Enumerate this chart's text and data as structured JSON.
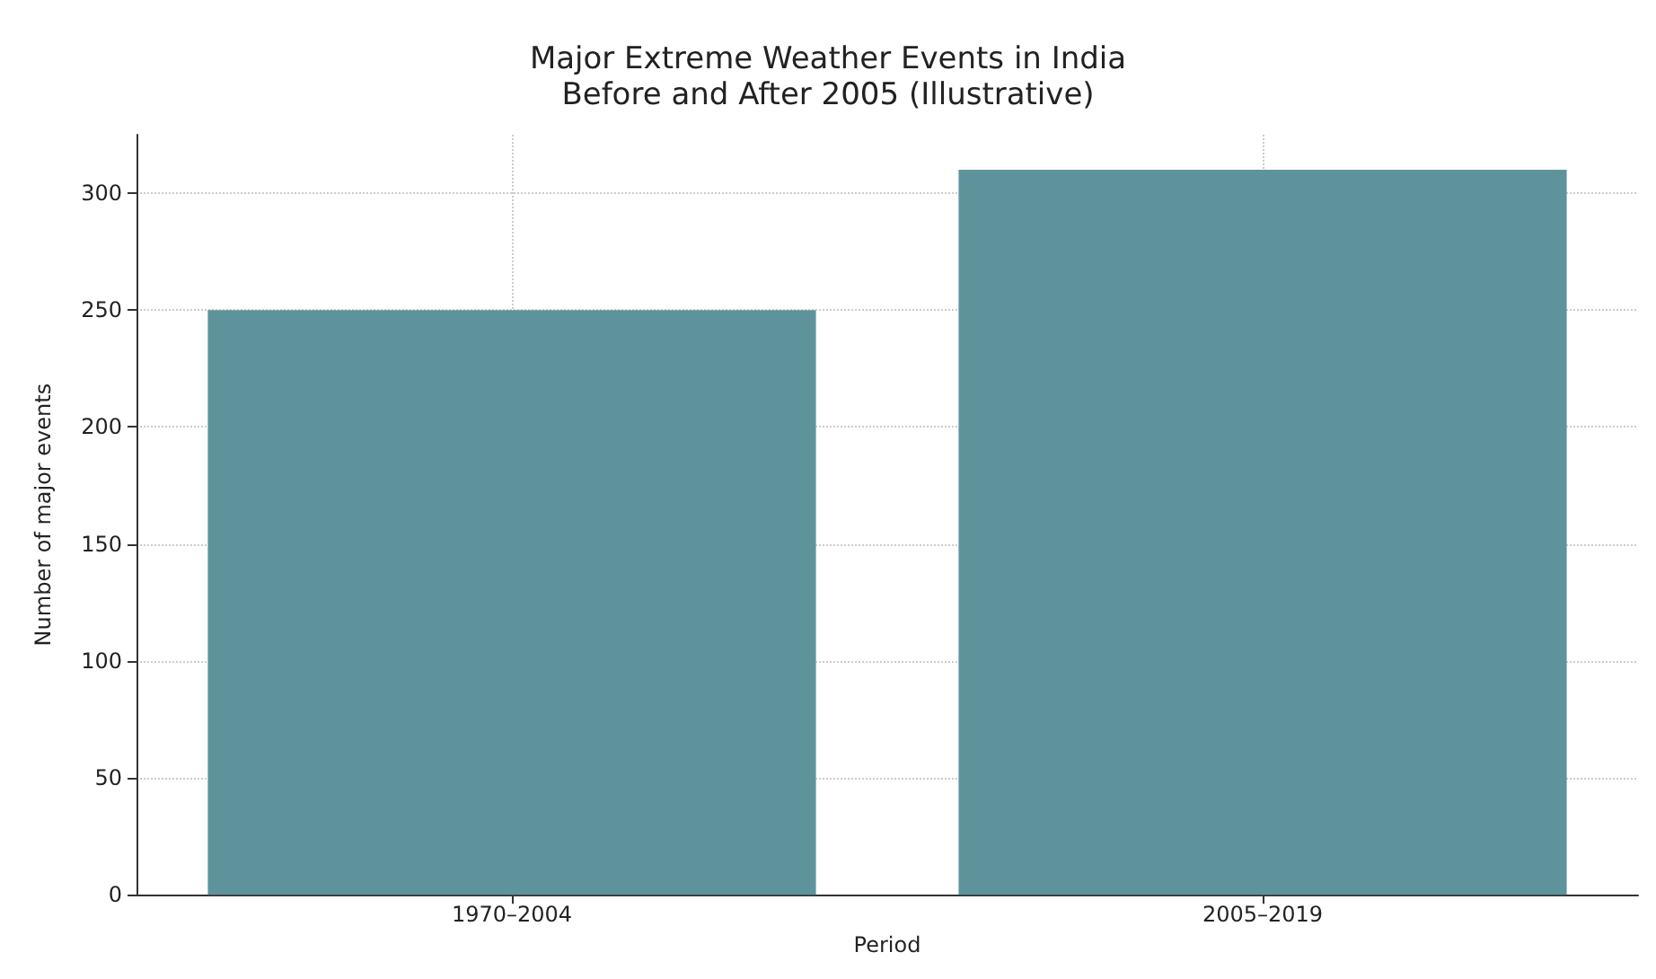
{
  "chart_data": {
    "type": "bar",
    "title": "Major Extreme Weather Events in India\nBefore and After 2005 (Illustrative)",
    "xlabel": "Period",
    "ylabel": "Number of major events",
    "categories": [
      "1970–2004",
      "2005–2019"
    ],
    "series": [
      {
        "color": "#5f939c",
        "values": [
          250,
          310
        ]
      }
    ],
    "ylim": [
      0,
      325
    ],
    "yticks": [
      0,
      50,
      100,
      150,
      200,
      250,
      300
    ],
    "grid": true
  }
}
